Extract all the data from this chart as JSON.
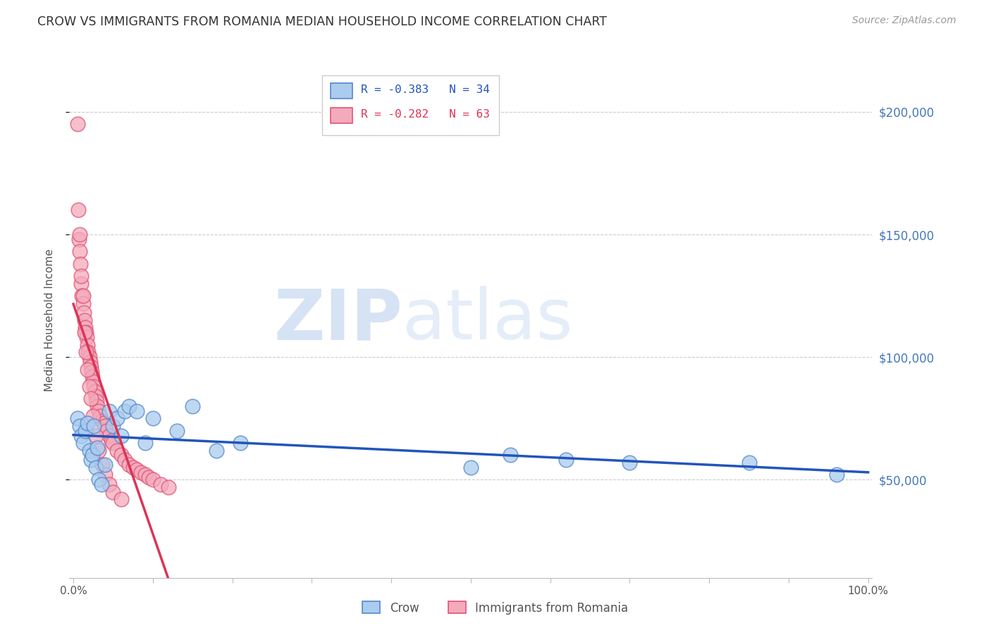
{
  "title": "CROW VS IMMIGRANTS FROM ROMANIA MEDIAN HOUSEHOLD INCOME CORRELATION CHART",
  "source": "Source: ZipAtlas.com",
  "ylabel": "Median Household Income",
  "yticks": [
    50000,
    100000,
    150000,
    200000
  ],
  "ytick_labels": [
    "$50,000",
    "$100,000",
    "$150,000",
    "$200,000"
  ],
  "ymin": 10000,
  "ymax": 220000,
  "xmin": -0.005,
  "xmax": 1.005,
  "crow_color": "#aaccee",
  "romania_color": "#f4aabc",
  "crow_edge_color": "#5588cc",
  "romania_edge_color": "#e05575",
  "trend_crow_color": "#2255bb",
  "trend_romania_solid_color": "#dd3355",
  "trend_romania_dashed_color": "#f0b0c0",
  "legend_r_crow": "R = -0.383",
  "legend_n_crow": "N = 34",
  "legend_r_romania": "R = -0.282",
  "legend_n_romania": "N = 63",
  "watermark_zip": "ZIP",
  "watermark_atlas": "atlas",
  "crow_x": [
    0.005,
    0.008,
    0.01,
    0.012,
    0.015,
    0.018,
    0.02,
    0.022,
    0.024,
    0.026,
    0.028,
    0.03,
    0.032,
    0.035,
    0.04,
    0.045,
    0.05,
    0.055,
    0.06,
    0.065,
    0.07,
    0.08,
    0.09,
    0.1,
    0.13,
    0.15,
    0.18,
    0.21,
    0.5,
    0.55,
    0.62,
    0.7,
    0.85,
    0.96
  ],
  "crow_y": [
    75000,
    72000,
    68000,
    65000,
    70000,
    73000,
    62000,
    58000,
    60000,
    72000,
    55000,
    63000,
    50000,
    48000,
    56000,
    78000,
    72000,
    75000,
    68000,
    78000,
    80000,
    78000,
    65000,
    75000,
    70000,
    80000,
    62000,
    65000,
    55000,
    60000,
    58000,
    57000,
    57000,
    52000
  ],
  "romania_x": [
    0.005,
    0.006,
    0.007,
    0.008,
    0.009,
    0.01,
    0.011,
    0.012,
    0.013,
    0.014,
    0.015,
    0.016,
    0.017,
    0.018,
    0.019,
    0.02,
    0.021,
    0.022,
    0.023,
    0.024,
    0.025,
    0.026,
    0.027,
    0.028,
    0.029,
    0.03,
    0.032,
    0.034,
    0.036,
    0.038,
    0.04,
    0.042,
    0.045,
    0.048,
    0.05,
    0.055,
    0.06,
    0.065,
    0.07,
    0.075,
    0.08,
    0.085,
    0.09,
    0.095,
    0.1,
    0.11,
    0.12,
    0.008,
    0.01,
    0.012,
    0.014,
    0.016,
    0.018,
    0.02,
    0.022,
    0.025,
    0.028,
    0.032,
    0.036,
    0.04,
    0.045,
    0.05,
    0.06
  ],
  "romania_y": [
    195000,
    160000,
    148000,
    143000,
    138000,
    130000,
    125000,
    122000,
    118000,
    115000,
    112000,
    110000,
    108000,
    105000,
    102000,
    100000,
    98000,
    96000,
    94000,
    92000,
    90000,
    88000,
    86000,
    84000,
    82000,
    80000,
    78000,
    76000,
    74000,
    73000,
    72000,
    70000,
    68000,
    66000,
    65000,
    62000,
    60000,
    58000,
    56000,
    55000,
    54000,
    53000,
    52000,
    51000,
    50000,
    48000,
    47000,
    150000,
    133000,
    125000,
    110000,
    102000,
    95000,
    88000,
    83000,
    76000,
    68000,
    62000,
    56000,
    52000,
    48000,
    45000,
    42000
  ]
}
